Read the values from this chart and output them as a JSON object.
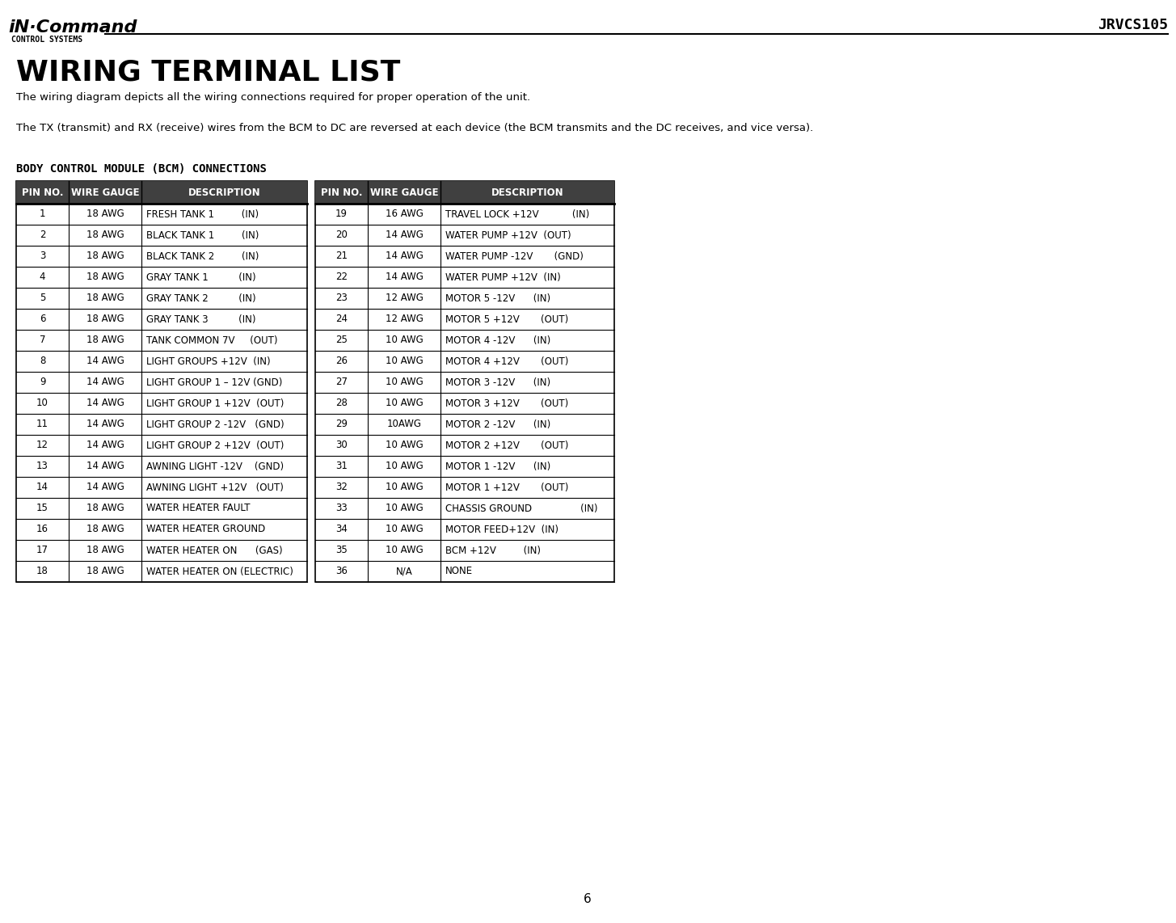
{
  "page_title": "JRVCS105",
  "logo_text": "iN·Command®",
  "logo_subtitle": "CONTROL SYSTEMS",
  "section_title": "WIRING TERMINAL LIST",
  "para1": "The wiring diagram depicts all the wiring connections required for proper operation of the unit.",
  "para2": "The TX (transmit) and RX (receive) wires from the BCM to DC are reversed at each device (the BCM transmits and the DC receives, and vice versa).",
  "table_title": "BODY CONTROL MODULE (BCM) CONNECTIONS",
  "col_headers": [
    "PIN NO.",
    "WIRE GAUGE",
    "DESCRIPTION"
  ],
  "left_table": [
    [
      "1",
      "18 AWG",
      "FRESH TANK 1         (IN)"
    ],
    [
      "2",
      "18 AWG",
      "BLACK TANK 1         (IN)"
    ],
    [
      "3",
      "18 AWG",
      "BLACK TANK 2         (IN)"
    ],
    [
      "4",
      "18 AWG",
      "GRAY TANK 1          (IN)"
    ],
    [
      "5",
      "18 AWG",
      "GRAY TANK 2          (IN)"
    ],
    [
      "6",
      "18 AWG",
      "GRAY TANK 3          (IN)"
    ],
    [
      "7",
      "18 AWG",
      "TANK COMMON 7V     (OUT)"
    ],
    [
      "8",
      "14 AWG",
      "LIGHT GROUPS +12V  (IN)"
    ],
    [
      "9",
      "14 AWG",
      "LIGHT GROUP 1 – 12V (GND)"
    ],
    [
      "10",
      "14 AWG",
      "LIGHT GROUP 1 +12V  (OUT)"
    ],
    [
      "11",
      "14 AWG",
      "LIGHT GROUP 2 -12V   (GND)"
    ],
    [
      "12",
      "14 AWG",
      "LIGHT GROUP 2 +12V  (OUT)"
    ],
    [
      "13",
      "14 AWG",
      "AWNING LIGHT -12V    (GND)"
    ],
    [
      "14",
      "14 AWG",
      "AWNING LIGHT +12V   (OUT)"
    ],
    [
      "15",
      "18 AWG",
      "WATER HEATER FAULT"
    ],
    [
      "16",
      "18 AWG",
      "WATER HEATER GROUND"
    ],
    [
      "17",
      "18 AWG",
      "WATER HEATER ON      (GAS)"
    ],
    [
      "18",
      "18 AWG",
      "WATER HEATER ON (ELECTRIC)"
    ]
  ],
  "right_table": [
    [
      "19",
      "16 AWG",
      "TRAVEL LOCK +12V           (IN)"
    ],
    [
      "20",
      "14 AWG",
      "WATER PUMP +12V  (OUT)"
    ],
    [
      "21",
      "14 AWG",
      "WATER PUMP -12V       (GND)"
    ],
    [
      "22",
      "14 AWG",
      "WATER PUMP +12V  (IN)"
    ],
    [
      "23",
      "12 AWG",
      "MOTOR 5 -12V      (IN)"
    ],
    [
      "24",
      "12 AWG",
      "MOTOR 5 +12V       (OUT)"
    ],
    [
      "25",
      "10 AWG",
      "MOTOR 4 -12V      (IN)"
    ],
    [
      "26",
      "10 AWG",
      "MOTOR 4 +12V       (OUT)"
    ],
    [
      "27",
      "10 AWG",
      "MOTOR 3 -12V      (IN)"
    ],
    [
      "28",
      "10 AWG",
      "MOTOR 3 +12V       (OUT)"
    ],
    [
      "29",
      "10AWG",
      "MOTOR 2 -12V      (IN)"
    ],
    [
      "30",
      "10 AWG",
      "MOTOR 2 +12V       (OUT)"
    ],
    [
      "31",
      "10 AWG",
      "MOTOR 1 -12V      (IN)"
    ],
    [
      "32",
      "10 AWG",
      "MOTOR 1 +12V       (OUT)"
    ],
    [
      "33",
      "10 AWG",
      "CHASSIS GROUND                (IN)"
    ],
    [
      "34",
      "10 AWG",
      "MOTOR FEED+12V  (IN)"
    ],
    [
      "35",
      "10 AWG",
      "BCM +12V         (IN)"
    ],
    [
      "36",
      "N/A",
      "NONE"
    ]
  ],
  "page_number": "6",
  "bg_color": "#ffffff",
  "header_bg": "#404040",
  "header_text_color": "#ffffff",
  "table_line_color": "#000000",
  "body_text_color": "#000000"
}
